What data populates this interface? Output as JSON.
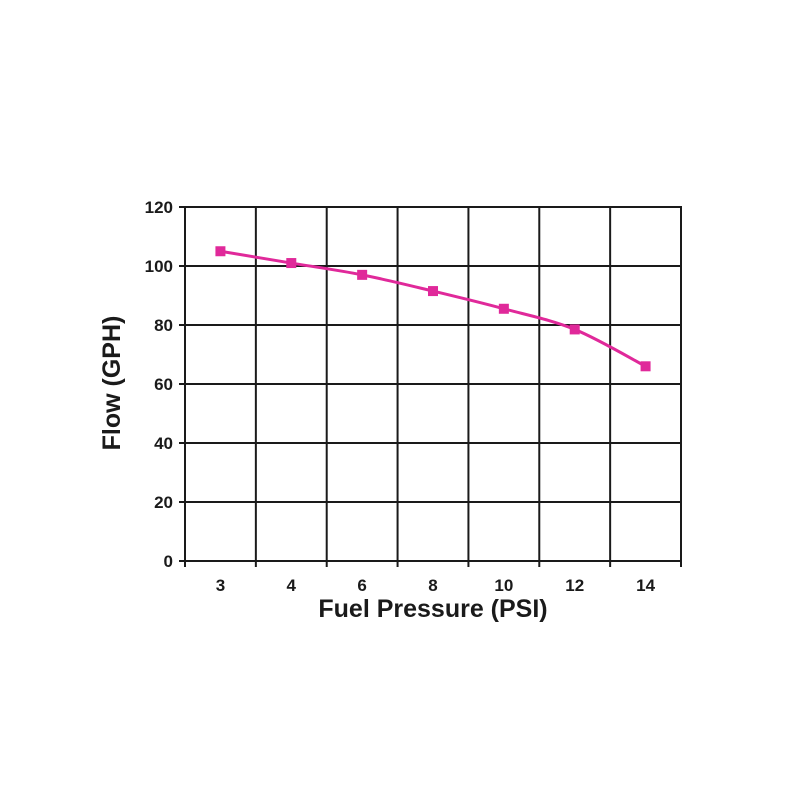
{
  "chart_data": {
    "type": "line",
    "xlabel": "Fuel Pressure (PSI)",
    "ylabel": "Flow (GPH)",
    "categories": [
      "3",
      "4",
      "6",
      "8",
      "10",
      "12",
      "14"
    ],
    "y_ticks": [
      "0",
      "20",
      "40",
      "60",
      "80",
      "100",
      "120"
    ],
    "ylim": [
      0,
      120
    ],
    "grid": true,
    "series": [
      {
        "values": [
          105,
          101,
          97,
          91.5,
          85.5,
          78.5,
          66
        ],
        "color": "#e0299a",
        "marker": "square"
      }
    ]
  }
}
